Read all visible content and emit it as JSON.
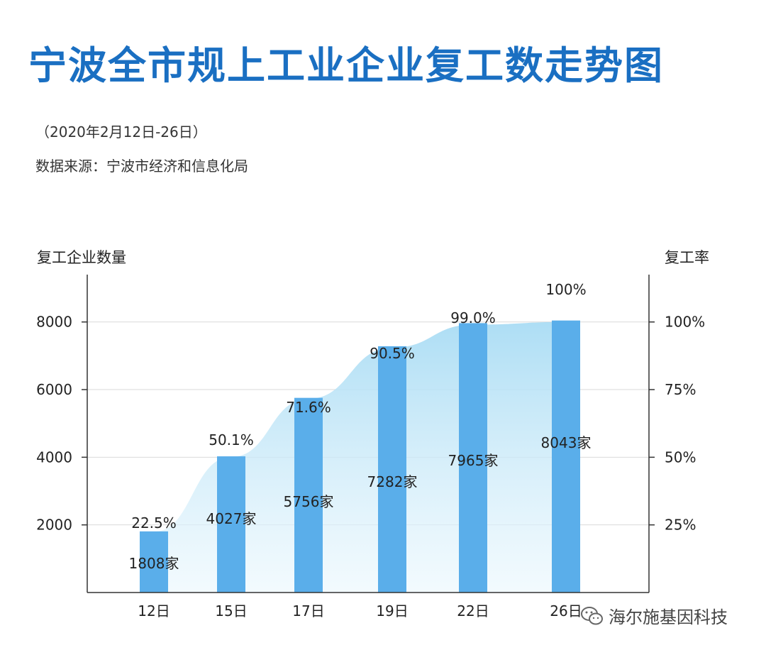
{
  "header": {
    "title": "宁波全市规上工业企业复工数走势图",
    "subtitle": "（2020年2月12日-26日）",
    "source": "数据来源：宁波市经济和信息化局"
  },
  "watermark": {
    "text": "海尔施基因科技",
    "icon": "wechat-icon"
  },
  "colors": {
    "bar": "#5aaeea",
    "area_top": "#a9dcf4",
    "title": "#1a6fc2"
  },
  "chart_data": {
    "type": "bar",
    "categories": [
      "12日",
      "15日",
      "17日",
      "19日",
      "22日",
      "26日"
    ],
    "series": [
      {
        "name": "复工企业数量",
        "values": [
          1808,
          4027,
          5756,
          7282,
          7965,
          8043
        ],
        "unit": "家"
      },
      {
        "name": "复工率",
        "values": [
          22.5,
          50.1,
          71.6,
          90.5,
          99.0,
          100
        ],
        "unit": "%",
        "display": "area"
      }
    ],
    "bar_labels": [
      "1808家",
      "4027家",
      "5756家",
      "7282家",
      "7965家",
      "8043家"
    ],
    "rate_labels": [
      "22.5%",
      "50.1%",
      "71.6%",
      "90.5%",
      "99.0%",
      "100%"
    ],
    "ylabel": "复工企业数量",
    "ylabel_right": "复工率",
    "ylim": [
      0,
      9400
    ],
    "y_ticks": [
      2000,
      4000,
      6000,
      8000
    ],
    "y_tick_labels": [
      "2000",
      "4000",
      "6000",
      "8000"
    ],
    "ylim_right": [
      0,
      117.5
    ],
    "y_right_ticks": [
      25,
      50,
      75,
      100
    ],
    "y_right_tick_labels": [
      "25%",
      "50%",
      "75%",
      "100%"
    ],
    "grid": true
  }
}
